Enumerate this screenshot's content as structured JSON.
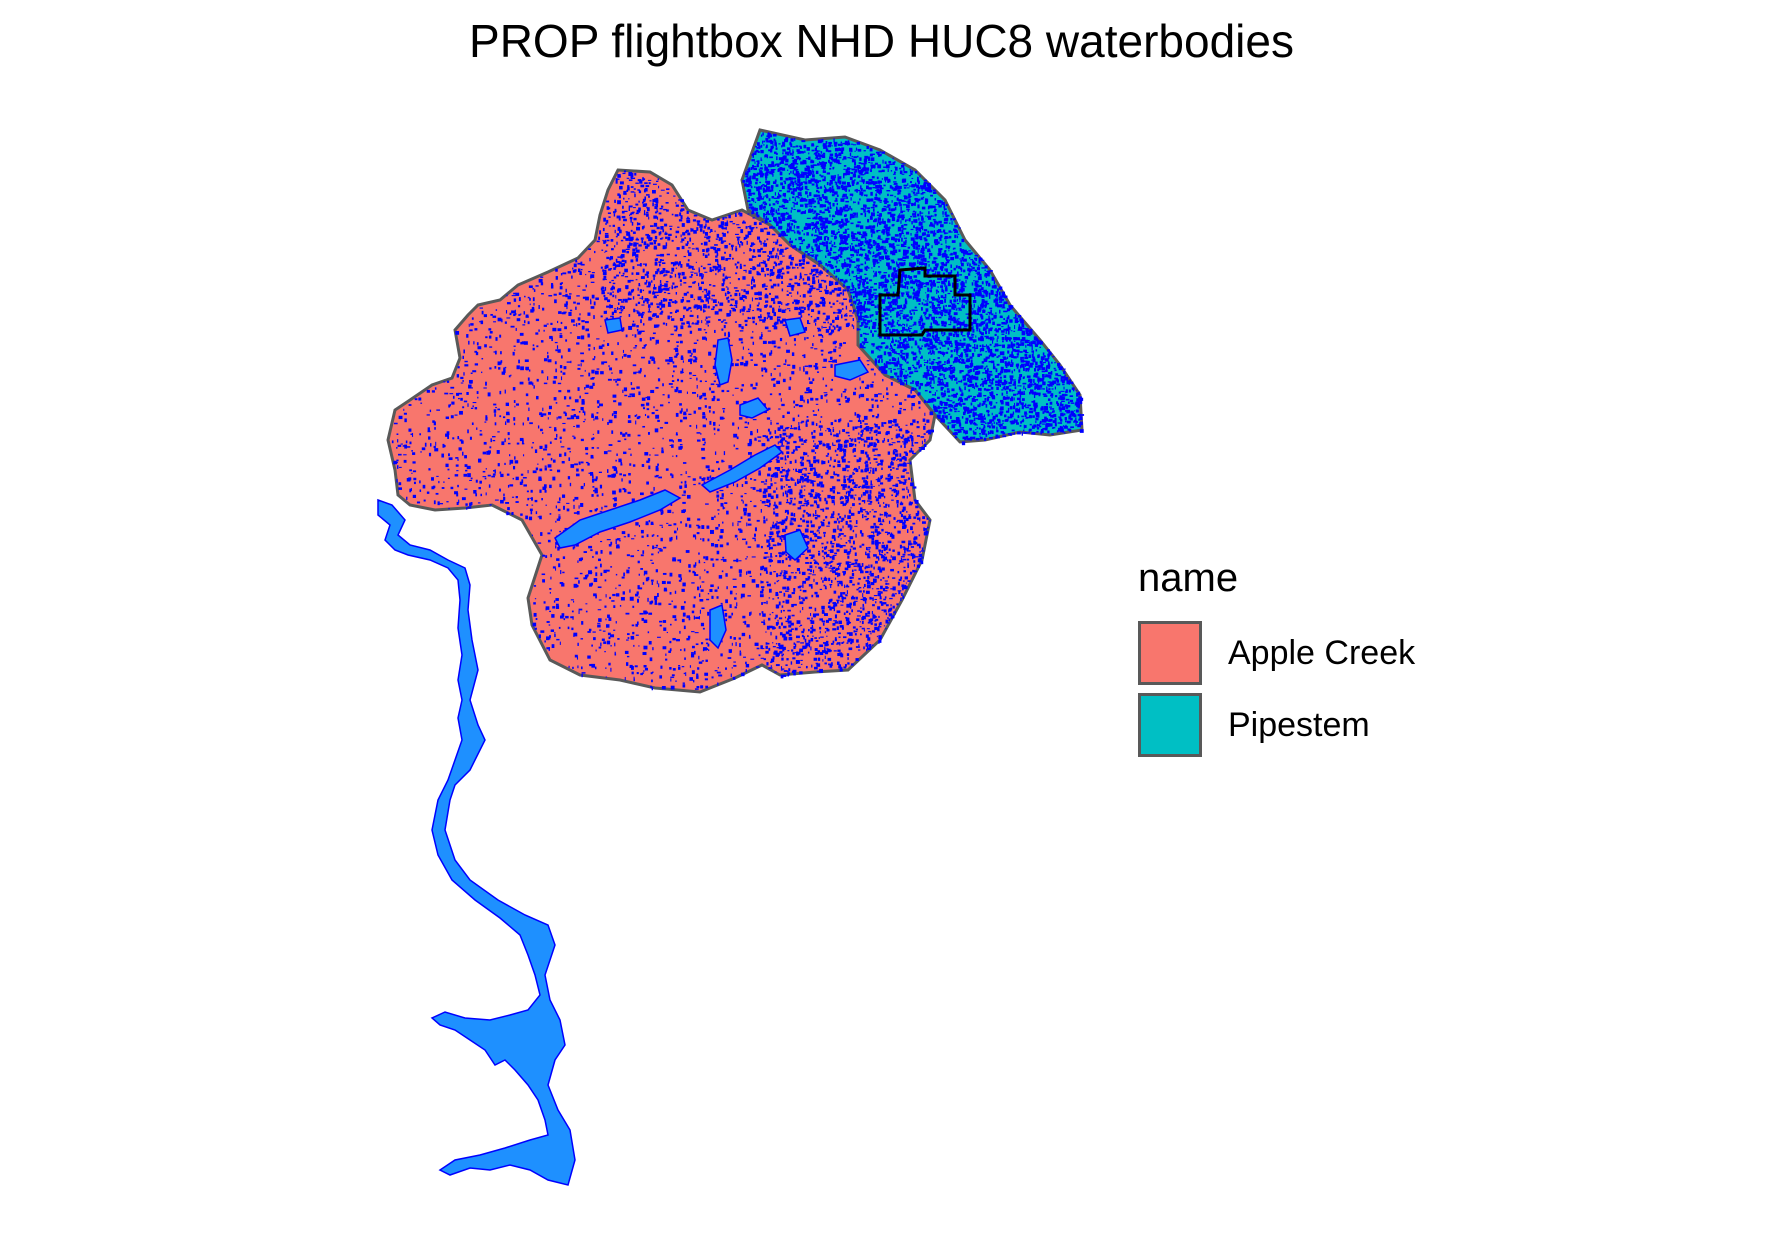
{
  "title": "PROP flightbox NHD HUC8 waterbodies",
  "legend": {
    "title": "name",
    "items": [
      {
        "label": "Apple Creek",
        "color": "#F8766D"
      },
      {
        "label": "Pipestem",
        "color": "#00BFC4"
      }
    ]
  },
  "colors": {
    "watershed_outline": "#595959",
    "waterbody_fill": "#1E90FF",
    "waterbody_stroke": "#0000FF",
    "flightbox_outline": "#000000"
  }
}
